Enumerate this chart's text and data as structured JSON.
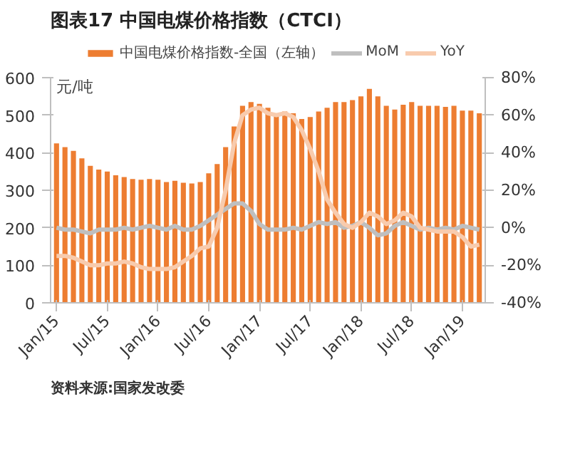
{
  "chart_data": {
    "type": "bar",
    "title": "图表17    中国电煤价格指数（CTCI）",
    "ylabel": "元/吨",
    "categories": [
      "Jan/15",
      null,
      null,
      null,
      null,
      null,
      "Jul/15",
      null,
      null,
      null,
      null,
      null,
      "Jan/16",
      null,
      null,
      null,
      null,
      null,
      "Jul/16",
      null,
      null,
      null,
      null,
      null,
      "Jan/17",
      null,
      null,
      null,
      null,
      null,
      "Jul/17",
      null,
      null,
      null,
      null,
      null,
      "Jan/18",
      null,
      null,
      null,
      null,
      null,
      "Jul/18",
      null,
      null,
      null,
      null,
      null,
      "Jan/19",
      null,
      null
    ],
    "series": [
      {
        "name": "中国电煤价格指数-全国（左轴）",
        "color": "#ed7d31",
        "values": [
          425,
          415,
          405,
          385,
          365,
          355,
          350,
          340,
          335,
          330,
          328,
          330,
          328,
          322,
          325,
          320,
          318,
          322,
          345,
          370,
          415,
          470,
          525,
          535,
          530,
          520,
          505,
          510,
          505,
          490,
          495,
          510,
          520,
          535,
          535,
          540,
          550,
          570,
          550,
          525,
          515,
          528,
          535,
          525,
          525,
          525,
          522,
          525,
          512,
          512,
          505
        ]
      },
      {
        "name": "MoM",
        "type": "line",
        "axis": "y2",
        "color": "#bfbfbf",
        "values": [
          0,
          -1,
          -1,
          -2,
          -3,
          -1,
          -1,
          -1,
          0,
          -1,
          0,
          1,
          0,
          -1,
          1,
          -1,
          -1,
          1,
          4,
          7,
          10,
          13,
          13,
          9,
          2,
          -1,
          -1,
          -1,
          0,
          -1,
          1,
          3,
          2,
          3,
          0,
          1,
          3,
          0,
          -4,
          -3,
          1,
          3,
          1,
          -1,
          0,
          -1,
          0,
          -1,
          1,
          0,
          -1
        ]
      },
      {
        "name": "YoY",
        "type": "line",
        "axis": "y2",
        "color": "#f8cbad",
        "values": [
          -15,
          -15,
          -16,
          -18,
          -20,
          -20,
          -19,
          -19,
          -18,
          -19,
          -21,
          -22,
          -22,
          -22,
          -21,
          -18,
          -15,
          -11,
          -10,
          0,
          20,
          45,
          60,
          63,
          64,
          61,
          60,
          61,
          59,
          52,
          42,
          30,
          15,
          8,
          2,
          0,
          3,
          8,
          6,
          2,
          4,
          8,
          6,
          0,
          -1,
          -2,
          -2,
          -2,
          -5,
          -10,
          -9
        ]
      }
    ],
    "ylim": [
      0,
      600
    ],
    "yticks": [
      0,
      100,
      200,
      300,
      400,
      500,
      600
    ],
    "y2lim": [
      -40,
      80
    ],
    "y2ticks": [
      {
        "value": -40,
        "label": "-40%"
      },
      {
        "value": -20,
        "label": "-20%"
      },
      {
        "value": 0,
        "label": "0%"
      },
      {
        "value": 20,
        "label": "20%"
      },
      {
        "value": 40,
        "label": "40%"
      },
      {
        "value": 60,
        "label": "60%"
      },
      {
        "value": 80,
        "label": "80%"
      }
    ],
    "legend": "top",
    "grid": false,
    "annotations": [
      "资料来源:国家发改委"
    ]
  }
}
